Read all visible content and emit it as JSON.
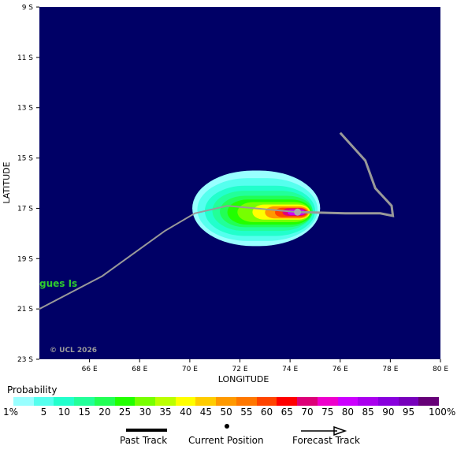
{
  "map": {
    "xaxis_title": "LONGITUDE",
    "yaxis_title": "LATITUDE",
    "lon_ticks": [
      "66 E",
      "68 E",
      "70 E",
      "72 E",
      "74 E",
      "76 E",
      "78 E",
      "80 E"
    ],
    "lat_ticks": [
      "9 S",
      "11 S",
      "13 S",
      "15 S",
      "17 S",
      "19 S",
      "21 S",
      "23 S"
    ],
    "lon_range": [
      64,
      80
    ],
    "lat_range": [
      -9,
      -23
    ],
    "place_label": "gues Is",
    "copyright": "© UCL 2026",
    "ocean_color": "#000066",
    "place_label_color": "#2ecc2e",
    "track_color": "#999999",
    "past_track": [
      [
        64,
        -21
      ],
      [
        66.5,
        -19.7
      ],
      [
        69,
        -17.9
      ],
      [
        70.2,
        -17.2
      ],
      [
        71.5,
        -16.9
      ],
      [
        74.3,
        -17.15
      ]
    ],
    "forecast_track": [
      [
        74.3,
        -17.15
      ],
      [
        76.2,
        -17.2
      ],
      [
        77.6,
        -17.2
      ],
      [
        78.1,
        -17.3
      ],
      [
        78.05,
        -16.9
      ],
      [
        77.4,
        -16.2
      ],
      [
        77,
        -15.1
      ],
      [
        76,
        -14
      ]
    ],
    "current_position": [
      74.3,
      -17.15
    ],
    "probability_field": {
      "center_lon": 73.6,
      "center_lat": -17.15,
      "levels": [
        {
          "percent": 1,
          "lon_span": [
            70.1,
            75.2
          ],
          "lat_span": [
            -15.5,
            -18.5
          ]
        },
        {
          "percent": 5,
          "lon_span": [
            70.3,
            75.1
          ],
          "lat_span": [
            -15.8,
            -18.3
          ]
        },
        {
          "percent": 10,
          "lon_span": [
            70.6,
            75.0
          ],
          "lat_span": [
            -16.1,
            -18.1
          ]
        },
        {
          "percent": 15,
          "lon_span": [
            70.9,
            74.9
          ],
          "lat_span": [
            -16.3,
            -17.9
          ]
        },
        {
          "percent": 20,
          "lon_span": [
            71.2,
            74.9
          ],
          "lat_span": [
            -16.5,
            -17.75
          ]
        },
        {
          "percent": 25,
          "lon_span": [
            71.5,
            74.85
          ],
          "lat_span": [
            -16.65,
            -17.65
          ]
        },
        {
          "percent": 30,
          "lon_span": [
            71.9,
            74.8
          ],
          "lat_span": [
            -16.75,
            -17.55
          ]
        },
        {
          "percent": 40,
          "lon_span": [
            72.5,
            74.8
          ],
          "lat_span": [
            -16.85,
            -17.45
          ]
        },
        {
          "percent": 50,
          "lon_span": [
            73.0,
            74.75
          ],
          "lat_span": [
            -16.92,
            -17.4
          ]
        },
        {
          "percent": 60,
          "lon_span": [
            73.4,
            74.7
          ],
          "lat_span": [
            -16.98,
            -17.35
          ]
        },
        {
          "percent": 70,
          "lon_span": [
            73.7,
            74.65
          ],
          "lat_span": [
            -17.0,
            -17.3
          ]
        },
        {
          "percent": 80,
          "lon_span": [
            73.9,
            74.6
          ],
          "lat_span": [
            -17.05,
            -17.27
          ]
        }
      ]
    }
  },
  "legend": {
    "title": "Probability",
    "labels": [
      "1%",
      "5",
      "10",
      "15",
      "20",
      "25",
      "30",
      "35",
      "40",
      "45",
      "50",
      "55",
      "60",
      "65",
      "70",
      "75",
      "80",
      "85",
      "90",
      "95",
      "100%"
    ],
    "colors": [
      "#99ffff",
      "#55ffee",
      "#22ffcc",
      "#22ff99",
      "#22ff55",
      "#22ff00",
      "#77ff00",
      "#bbff00",
      "#ffff00",
      "#ffcc00",
      "#ff9900",
      "#ff7700",
      "#ff4400",
      "#ff0000",
      "#dd0077",
      "#ee00cc",
      "#cc00ff",
      "#aa00ee",
      "#8800dd",
      "#7700bb",
      "#660077"
    ],
    "past_track_label": "Past Track",
    "current_position_label": "Current Position",
    "forecast_track_label": "Forecast Track"
  }
}
